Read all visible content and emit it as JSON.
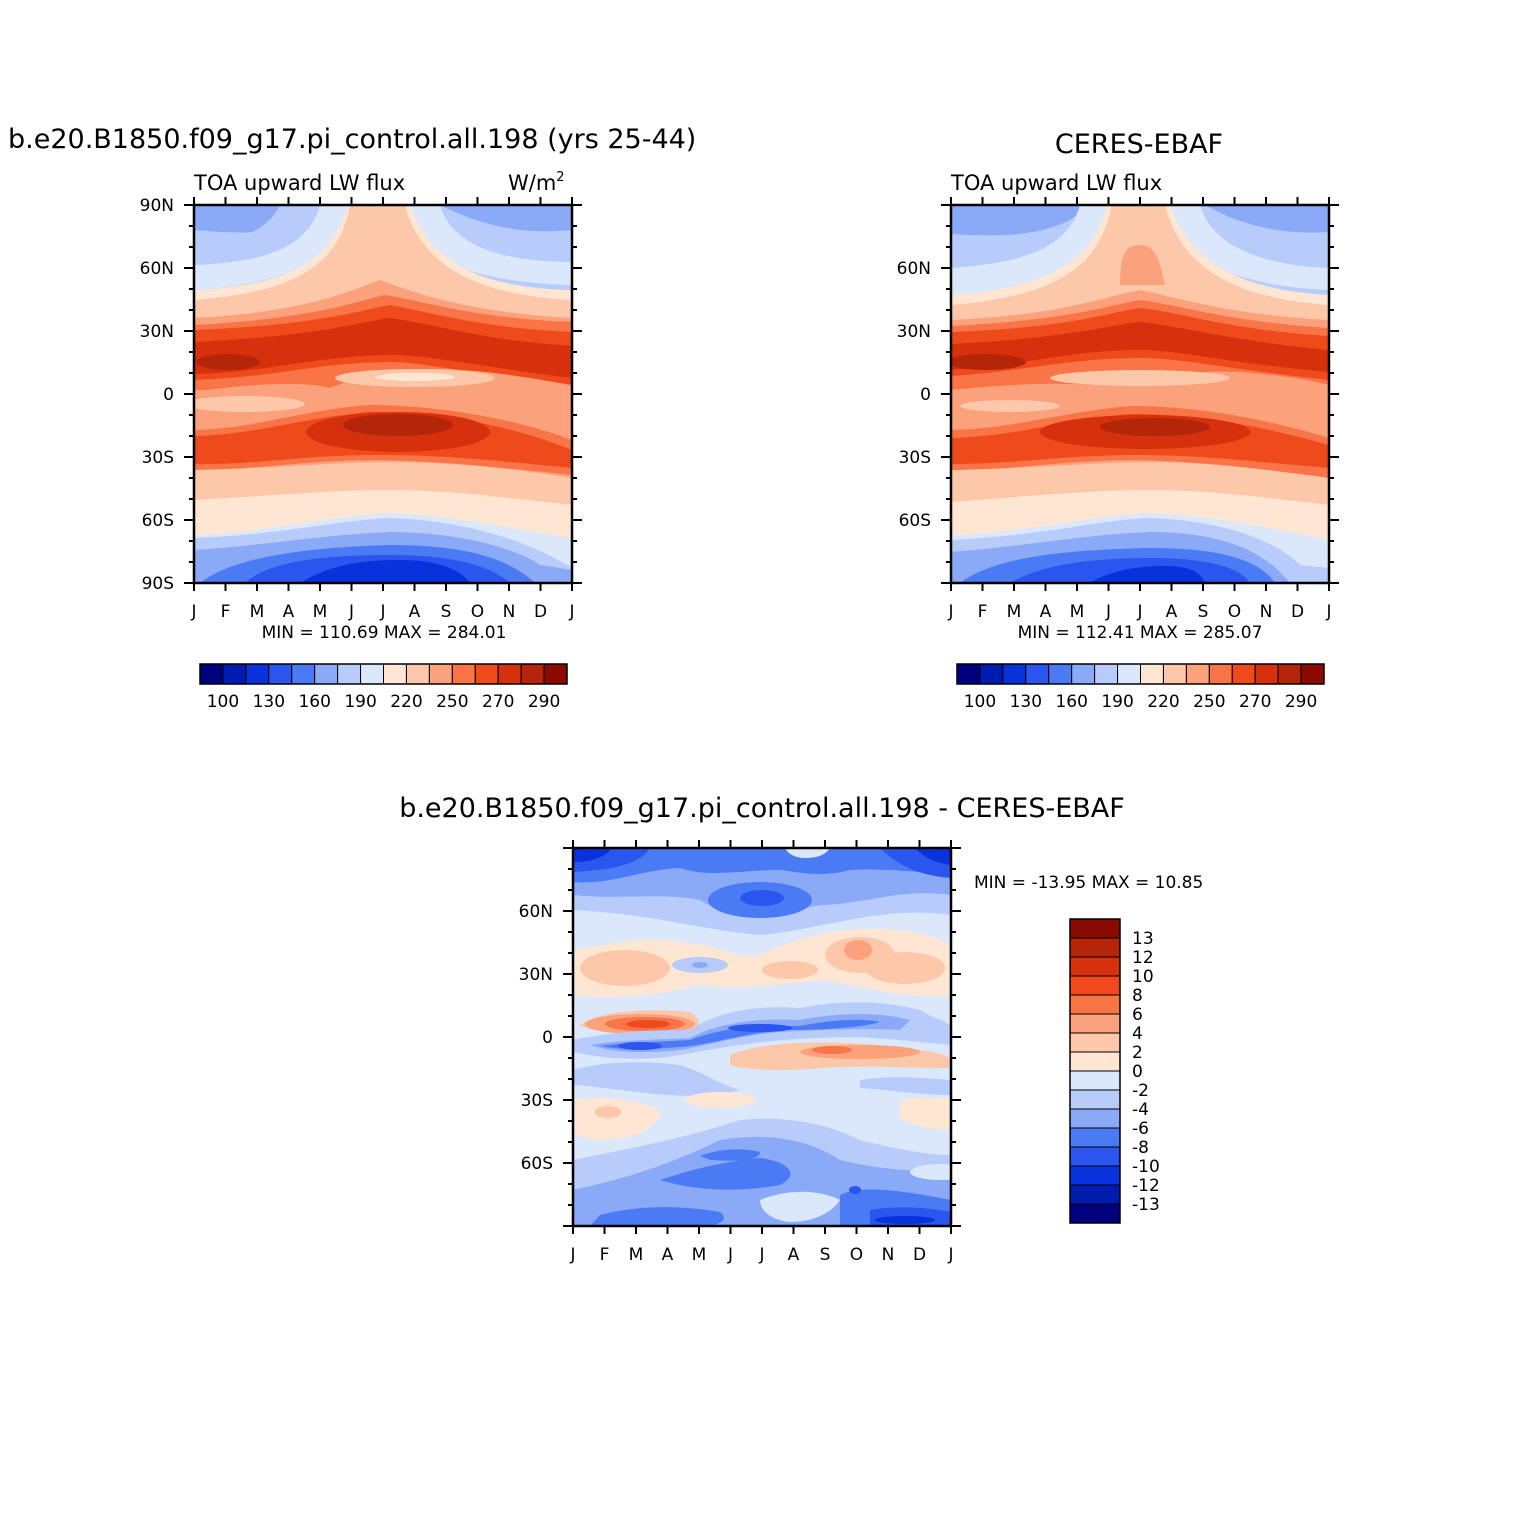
{
  "chart_data": [
    {
      "type": "heatmap",
      "title": "b.e20.B1850.f09_g17.pi_control.all.198 (yrs 25-44)",
      "subtitle": "TOA upward LW flux",
      "units_label": "W/m",
      "units_exponent": "2",
      "x_ticks": [
        "J",
        "F",
        "M",
        "A",
        "M",
        "J",
        "J",
        "A",
        "S",
        "O",
        "N",
        "D",
        "J"
      ],
      "y_ticks": [
        "90N",
        "60N",
        "30N",
        "0",
        "30S",
        "60S",
        "90S"
      ],
      "ylim": [
        -90,
        90
      ],
      "stats": "MIN =  110.69  MAX =  284.01",
      "colorbar_labels": [
        "100",
        "130",
        "160",
        "190",
        "220",
        "250",
        "270",
        "290"
      ]
    },
    {
      "type": "heatmap",
      "title": "CERES-EBAF",
      "subtitle": "TOA upward LW flux",
      "x_ticks": [
        "J",
        "F",
        "M",
        "A",
        "M",
        "J",
        "J",
        "A",
        "S",
        "O",
        "N",
        "D",
        "J"
      ],
      "y_ticks": [
        "60N",
        "30N",
        "0",
        "30S",
        "60S"
      ],
      "ylim": [
        -90,
        90
      ],
      "stats": "MIN =  112.41  MAX =  285.07",
      "colorbar_labels": [
        "100",
        "130",
        "160",
        "190",
        "220",
        "250",
        "270",
        "290"
      ]
    },
    {
      "type": "heatmap",
      "title": "b.e20.B1850.f09_g17.pi_control.all.198  -  CERES-EBAF",
      "x_ticks": [
        "J",
        "F",
        "M",
        "A",
        "M",
        "J",
        "J",
        "A",
        "S",
        "O",
        "N",
        "D",
        "J"
      ],
      "y_ticks": [
        "60N",
        "30N",
        "0",
        "30S",
        "60S"
      ],
      "ylim": [
        -90,
        90
      ],
      "stats": "MIN = -13.95  MAX =   10.85",
      "colorbar_labels": [
        "13",
        "12",
        "10",
        "8",
        "6",
        "4",
        "2",
        "0",
        "-2",
        "-4",
        "-6",
        "-8",
        "-10",
        "-12",
        "-13"
      ]
    }
  ],
  "colors": {
    "abs_scale": [
      "#00007f",
      "#001bb0",
      "#0a32dc",
      "#2a55ef",
      "#4a7bf5",
      "#8aaaf7",
      "#b7ccfa",
      "#dbe8fb",
      "#fee6d3",
      "#fdc7a9",
      "#fba27c",
      "#f97548",
      "#ee4a1c",
      "#d6300c",
      "#b42509",
      "#8a0a00"
    ],
    "diff_scale": [
      "#8a0a00",
      "#b42509",
      "#d6300c",
      "#f2491c",
      "#f77444",
      "#fba27c",
      "#fdc7a9",
      "#fee6d3",
      "#dbe8fb",
      "#b7ccfa",
      "#8aaaf7",
      "#4a7bf5",
      "#2a55ef",
      "#0a32dc",
      "#001bb0",
      "#00007f"
    ]
  }
}
